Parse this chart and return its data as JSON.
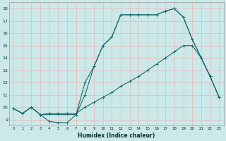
{
  "xlabel": "Humidex (Indice chaleur)",
  "xlim": [
    -0.5,
    23.5
  ],
  "ylim": [
    8.5,
    18.5
  ],
  "xticks": [
    0,
    1,
    2,
    3,
    4,
    5,
    6,
    7,
    8,
    9,
    10,
    11,
    12,
    13,
    14,
    15,
    16,
    17,
    18,
    19,
    20,
    21,
    22,
    23
  ],
  "yticks": [
    9,
    10,
    11,
    12,
    13,
    14,
    15,
    16,
    17,
    18
  ],
  "background_color": "#cce8e8",
  "grid_color": "#e8b8b8",
  "line_color": "#1a6b6b",
  "line1_x": [
    0,
    1,
    2,
    3,
    4,
    5,
    6,
    7,
    8,
    9,
    10,
    11,
    12,
    13,
    14,
    15,
    16,
    17,
    18,
    19,
    20,
    21,
    22,
    23
  ],
  "line1_y": [
    9.9,
    9.5,
    10.0,
    9.4,
    8.85,
    8.75,
    8.75,
    9.4,
    11.0,
    13.3,
    15.0,
    15.7,
    17.5,
    17.5,
    17.5,
    17.5,
    17.5,
    17.8,
    18.0,
    17.3,
    15.5,
    14.0,
    12.5,
    10.8
  ],
  "line2_x": [
    0,
    1,
    2,
    3,
    4,
    5,
    6,
    7,
    8,
    9,
    10,
    11,
    12,
    13,
    14,
    15,
    16,
    17,
    18,
    19,
    20,
    21,
    22,
    23
  ],
  "line2_y": [
    9.9,
    9.5,
    10.0,
    9.4,
    9.5,
    9.5,
    9.5,
    9.5,
    10.0,
    10.4,
    10.8,
    11.2,
    11.7,
    12.1,
    12.5,
    13.0,
    13.5,
    14.0,
    14.5,
    15.0,
    15.0,
    14.0,
    12.5,
    10.8
  ],
  "line3_x": [
    0,
    1,
    2,
    3,
    7,
    8,
    9,
    10,
    11,
    12,
    13,
    14,
    15,
    16,
    17,
    18,
    19,
    20,
    21,
    22,
    23
  ],
  "line3_y": [
    9.9,
    9.5,
    10.0,
    9.4,
    9.4,
    12.0,
    13.3,
    15.0,
    15.7,
    17.5,
    17.5,
    17.5,
    17.5,
    17.5,
    17.8,
    18.0,
    17.3,
    15.5,
    14.0,
    12.5,
    10.8
  ]
}
